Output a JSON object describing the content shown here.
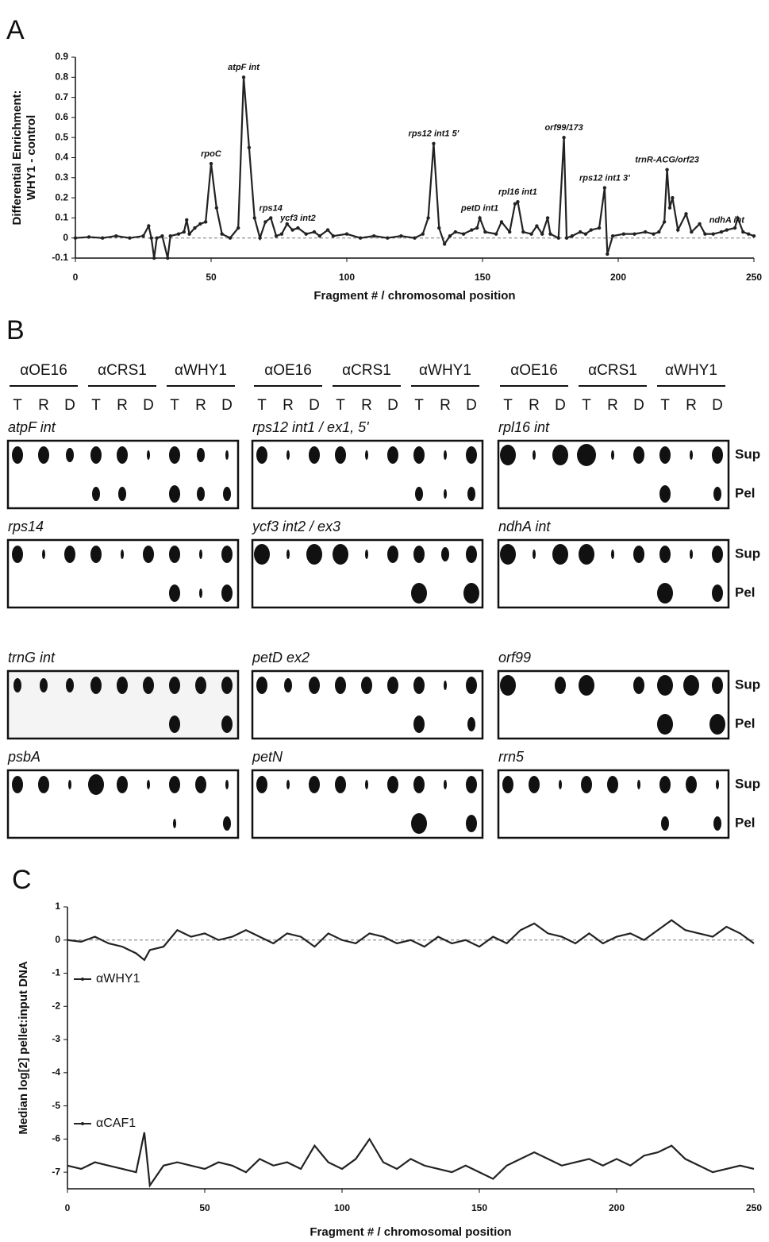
{
  "chart_data": [
    {
      "type": "line",
      "panel_label": "A",
      "x_label": "Fragment # / chromosomal position",
      "y_label": [
        "Differential Enrichment:",
        "WHY1 - control"
      ],
      "x": [
        0,
        5,
        10,
        15,
        20,
        25,
        27,
        28,
        29,
        30,
        32,
        34,
        35,
        38,
        40,
        41,
        42,
        44,
        46,
        48,
        50,
        52,
        54,
        57,
        60,
        62,
        64,
        66,
        68,
        70,
        72,
        74,
        76,
        78,
        80,
        82,
        85,
        88,
        90,
        93,
        95,
        100,
        105,
        110,
        115,
        120,
        125,
        128,
        130,
        132,
        134,
        136,
        138,
        140,
        143,
        146,
        148,
        149,
        151,
        155,
        157,
        160,
        162,
        163,
        165,
        168,
        170,
        172,
        174,
        175,
        178,
        180,
        181,
        183,
        186,
        188,
        190,
        193,
        195,
        196,
        198,
        202,
        206,
        210,
        213,
        215,
        217,
        218,
        219,
        220,
        222,
        225,
        227,
        230,
        232,
        235,
        238,
        240,
        243,
        244,
        246,
        248,
        250
      ],
      "series": [
        {
          "color": "#222222",
          "values": [
            0,
            0.005,
            0,
            0.01,
            0,
            0.01,
            0.06,
            0,
            -0.1,
            0,
            0.01,
            -0.1,
            0.01,
            0.02,
            0.03,
            0.09,
            0.02,
            0.05,
            0.07,
            0.08,
            0.37,
            0.15,
            0.02,
            0,
            0.05,
            0.8,
            0.45,
            0.1,
            0,
            0.08,
            0.1,
            0.01,
            0.02,
            0.07,
            0.04,
            0.05,
            0.02,
            0.03,
            0.01,
            0.04,
            0.01,
            0.02,
            0,
            0.01,
            0,
            0.01,
            0,
            0.02,
            0.1,
            0.47,
            0.05,
            -0.03,
            0.01,
            0.03,
            0.02,
            0.04,
            0.05,
            0.1,
            0.03,
            0.02,
            0.08,
            0.03,
            0.17,
            0.18,
            0.03,
            0.02,
            0.06,
            0.02,
            0.1,
            0.02,
            0,
            0.5,
            0,
            0.01,
            0.03,
            0.02,
            0.04,
            0.05,
            0.25,
            -0.08,
            0.01,
            0.02,
            0.02,
            0.03,
            0.02,
            0.03,
            0.08,
            0.34,
            0.15,
            0.2,
            0.04,
            0.12,
            0.03,
            0.07,
            0.02,
            0.02,
            0.03,
            0.04,
            0.05,
            0.1,
            0.03,
            0.02,
            0.01
          ]
        }
      ],
      "annotations": [
        {
          "text": "rpoC",
          "x": 50,
          "y": 0.37
        },
        {
          "text": "atpF int",
          "x": 62,
          "y": 0.8
        },
        {
          "text": "rps14",
          "x": 72,
          "y": 0.1
        },
        {
          "text": "ycf3 int2",
          "x": 82,
          "y": 0.05
        },
        {
          "text": "rps12 int1 5'",
          "x": 132,
          "y": 0.47
        },
        {
          "text": "petD int1",
          "x": 149,
          "y": 0.1
        },
        {
          "text": "rpl16 int1",
          "x": 163,
          "y": 0.18
        },
        {
          "text": "orf99/173",
          "x": 180,
          "y": 0.5
        },
        {
          "text": "rps12 int1 3'",
          "x": 195,
          "y": 0.25
        },
        {
          "text": "trnR-ACG/orf23",
          "x": 218,
          "y": 0.34
        },
        {
          "text": "ndhA int",
          "x": 240,
          "y": 0.04
        }
      ],
      "xlim": [
        0,
        250
      ],
      "xticks": [
        0,
        50,
        100,
        150,
        200,
        250
      ],
      "ylim": [
        -0.1,
        0.9
      ],
      "yticks": [
        -0.1,
        0,
        0.1,
        0.2,
        0.3,
        0.4,
        0.5,
        0.6,
        0.7,
        0.8,
        0.9
      ],
      "zero_line": true,
      "markers": true
    },
    {
      "type": "line",
      "panel_label": "C",
      "x_label": "Fragment # / chromosomal position",
      "y_label": [
        "Median log[2] pellet:input DNA"
      ],
      "x": [
        0,
        5,
        10,
        15,
        20,
        25,
        28,
        30,
        35,
        40,
        45,
        50,
        55,
        60,
        65,
        70,
        75,
        80,
        85,
        90,
        95,
        100,
        105,
        110,
        115,
        120,
        125,
        130,
        135,
        140,
        145,
        150,
        155,
        160,
        165,
        170,
        175,
        180,
        185,
        190,
        195,
        200,
        205,
        210,
        215,
        220,
        225,
        230,
        235,
        240,
        245,
        250
      ],
      "series": [
        {
          "name": "αWHY1",
          "color": "#222222",
          "values": [
            0,
            -0.05,
            0.1,
            -0.1,
            -0.2,
            -0.4,
            -0.6,
            -0.3,
            -0.2,
            0.3,
            0.1,
            0.2,
            0,
            0.1,
            0.3,
            0.1,
            -0.1,
            0.2,
            0.1,
            -0.2,
            0.2,
            0,
            -0.1,
            0.2,
            0.1,
            -0.1,
            0,
            -0.2,
            0.1,
            -0.1,
            0,
            -0.2,
            0.1,
            -0.1,
            0.3,
            0.5,
            0.2,
            0.1,
            -0.1,
            0.2,
            -0.1,
            0.1,
            0.2,
            0,
            0.3,
            0.6,
            0.3,
            0.2,
            0.1,
            0.4,
            0.2,
            -0.1
          ]
        },
        {
          "name": "αCAF1",
          "color": "#222222",
          "values": [
            -6.8,
            -6.9,
            -6.7,
            -6.8,
            -6.9,
            -7,
            -5.8,
            -7.4,
            -6.8,
            -6.7,
            -6.8,
            -6.9,
            -6.7,
            -6.8,
            -7,
            -6.6,
            -6.8,
            -6.7,
            -6.9,
            -6.2,
            -6.7,
            -6.9,
            -6.6,
            -6,
            -6.7,
            -6.9,
            -6.6,
            -6.8,
            -6.9,
            -7,
            -6.8,
            -7,
            -7.2,
            -6.8,
            -6.6,
            -6.4,
            -6.6,
            -6.8,
            -6.7,
            -6.6,
            -6.8,
            -6.6,
            -6.8,
            -6.5,
            -6.4,
            -6.2,
            -6.6,
            -6.8,
            -7,
            -6.9,
            -6.8,
            -6.9
          ]
        }
      ],
      "xlim": [
        0,
        250
      ],
      "xticks": [
        0,
        50,
        100,
        150,
        200,
        250
      ],
      "ylim": [
        -7.5,
        1
      ],
      "yticks": [
        -7,
        -6,
        -5,
        -4,
        -3,
        -2,
        -1,
        0,
        1
      ],
      "zero_line": true,
      "markers": false
    }
  ],
  "blots": {
    "panel_label": "B",
    "antibodies": [
      "αOE16",
      "αCRS1",
      "αWHY1"
    ],
    "lanes": [
      "T",
      "R",
      "D"
    ],
    "fractions": [
      "Sup",
      "Pel"
    ],
    "rows": [
      [
        "atpF int",
        "rps12 int1 / ex1, 5'",
        "rpl16 int"
      ],
      [
        "rps14",
        "ycf3 int2 / ex3",
        "ndhA int"
      ],
      [
        "trnG int",
        "petD ex2",
        "orf99"
      ],
      [
        "psbA",
        "petN",
        "rrn5"
      ]
    ]
  }
}
